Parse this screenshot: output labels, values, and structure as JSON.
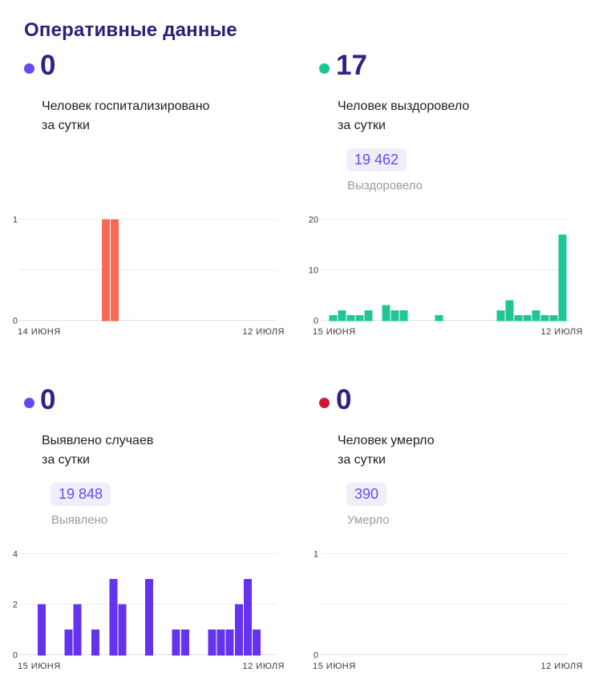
{
  "page_title": "Оперативные данные",
  "colors": {
    "title_text": "#2A2178",
    "stat_number": "#2B2483",
    "body_text": "#1E1E1E",
    "muted_text": "#9B9B9B",
    "axis_text": "#3C3C3C",
    "gridline": "#EDEDED",
    "badge_bg": "#EFEFFC",
    "badge_text": "#6A4AEE",
    "hospitalized_accent": "#6B46F2",
    "recovered_accent": "#1BC593",
    "detected_accent": "#6B46F2",
    "deaths_accent": "#D11437"
  },
  "panels": [
    {
      "id": "hospitalized",
      "stat_value": "0",
      "dot_color": "#6B46F2",
      "label_lines": [
        "Человек госпитализировано",
        "за сутки"
      ]
    },
    {
      "id": "recovered",
      "stat_value": "17",
      "dot_color": "#1BC593",
      "label_lines": [
        "Человек выздоровело",
        "за сутки"
      ],
      "badge": {
        "value": "19 462",
        "caption": "Выздоровело"
      }
    },
    {
      "id": "detected",
      "stat_value": "0",
      "dot_color": "#6B46F2",
      "label_lines": [
        "Выявлено случаев",
        "за сутки"
      ],
      "badge": {
        "value": "19 848",
        "caption": "Выявлено"
      }
    },
    {
      "id": "deaths",
      "stat_value": "0",
      "dot_color": "#D11437",
      "label_lines": [
        "Человек умерло",
        "за сутки"
      ],
      "badge": {
        "value": "390",
        "caption": "Умерло"
      }
    }
  ],
  "chart_data": [
    {
      "type": "bar",
      "name": "Человек госпитализировано за сутки",
      "color": "#F96A52",
      "y_max": 1,
      "y_ticks": [
        {
          "value": 1,
          "label": "1"
        },
        {
          "value": 0,
          "label": "0"
        }
      ],
      "x_start_label": "14 ИЮНЯ",
      "x_end_label": "12 ИЮЛЯ",
      "grid": true,
      "values": [
        0,
        0,
        0,
        0,
        0,
        0,
        0,
        0,
        0,
        1,
        1,
        0,
        0,
        0,
        0,
        0,
        0,
        0,
        0,
        0,
        0,
        0,
        0,
        0,
        0,
        0,
        0,
        0,
        0
      ]
    },
    {
      "type": "bar",
      "name": "Человек выздоровело за сутки",
      "color": "#1EC795",
      "y_max": 20,
      "y_ticks": [
        {
          "value": 20,
          "label": "20"
        },
        {
          "value": 10,
          "label": "10"
        },
        {
          "value": 0,
          "label": "0"
        }
      ],
      "x_start_label": "15 ИЮНЯ",
      "x_end_label": "12 ИЮЛЯ",
      "grid": true,
      "values": [
        0,
        1,
        2,
        1,
        1,
        2,
        0,
        3,
        2,
        2,
        0,
        0,
        0,
        1,
        0,
        0,
        0,
        0,
        0,
        0,
        2,
        4,
        1,
        1,
        2,
        1,
        1,
        17
      ]
    },
    {
      "type": "bar",
      "name": "Выявлено случаев за сутки",
      "color": "#6532F0",
      "y_max": 4,
      "y_ticks": [
        {
          "value": 4,
          "label": "4"
        },
        {
          "value": 2,
          "label": "2"
        },
        {
          "value": 0,
          "label": "0"
        }
      ],
      "x_start_label": "15 ИЮНЯ",
      "x_end_label": "12 ИЮЛЯ",
      "grid": true,
      "values": [
        0,
        0,
        2,
        0,
        0,
        1,
        2,
        0,
        1,
        0,
        3,
        2,
        0,
        0,
        3,
        0,
        0,
        1,
        1,
        0,
        0,
        1,
        1,
        1,
        2,
        3,
        1,
        0
      ]
    },
    {
      "type": "bar",
      "name": "Человек умерло за сутки",
      "color": "#D11437",
      "y_max": 1,
      "y_ticks": [
        {
          "value": 1,
          "label": "1"
        },
        {
          "value": 0,
          "label": "0"
        }
      ],
      "x_start_label": "15 ИЮНЯ",
      "x_end_label": "12 ИЮЛЯ",
      "grid": true,
      "values": [
        0,
        0,
        0,
        0,
        0,
        0,
        0,
        0,
        0,
        0,
        0,
        0,
        0,
        0,
        0,
        0,
        0,
        0,
        0,
        0,
        0,
        0,
        0,
        0,
        0,
        0,
        0,
        0
      ]
    }
  ]
}
